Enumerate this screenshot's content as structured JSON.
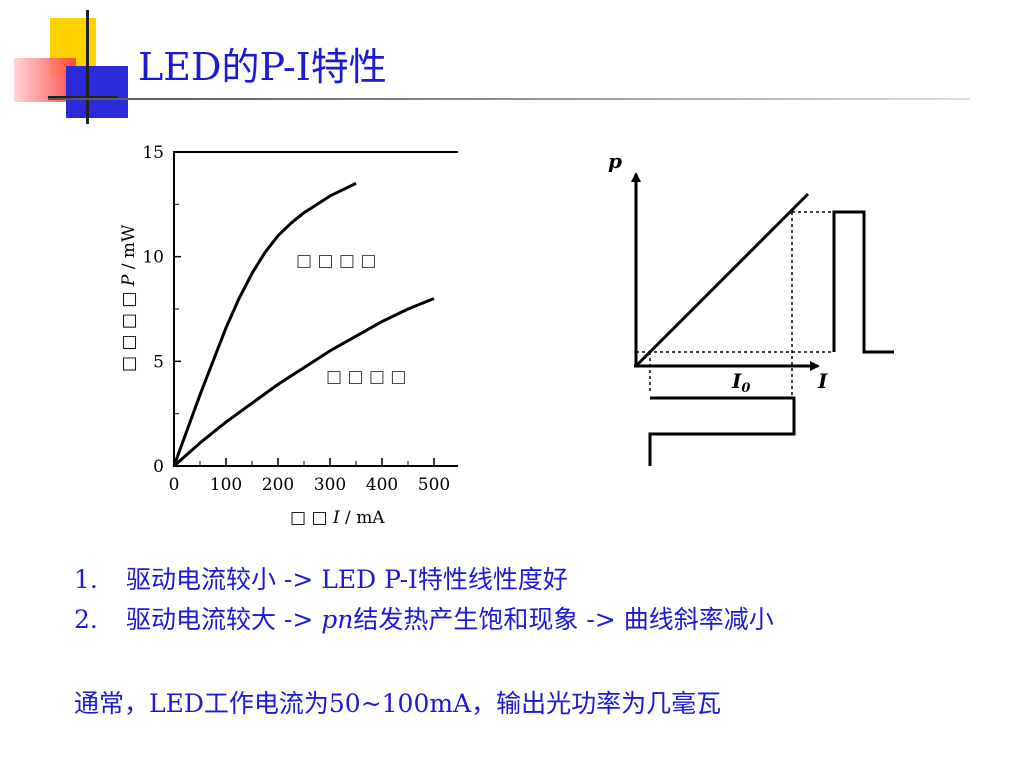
{
  "slide": {
    "title": "LED的P-I特性",
    "colors": {
      "title": "#1a1ad8",
      "accent_yellow": "#ffd200",
      "accent_red": "#ff3a3a",
      "accent_blue": "#2a2ad8"
    }
  },
  "chart_data": [
    {
      "type": "line",
      "xlim": [
        0,
        500
      ],
      "ylim": [
        0,
        15
      ],
      "x_ticks": [
        "0",
        "100",
        "200",
        "300",
        "400",
        "500"
      ],
      "y_ticks": [
        "0",
        "5",
        "10",
        "15"
      ],
      "xlabel_symbol": "I",
      "xlabel_unit": " / mA",
      "ylabel_symbol": "P",
      "ylabel_unit": " / mW",
      "xlabel_prefix": "□ □",
      "ylabel_prefix": "□ □ □ □",
      "grid": false,
      "series": [
        {
          "name": "□ □ □ □",
          "x": [
            0,
            25,
            50,
            75,
            100,
            125,
            150,
            175,
            200,
            225,
            250,
            275,
            300,
            325,
            350
          ],
          "y": [
            0,
            1.7,
            3.4,
            5.0,
            6.6,
            8.0,
            9.2,
            10.2,
            11.0,
            11.6,
            12.1,
            12.5,
            12.9,
            13.2,
            13.5
          ]
        },
        {
          "name": "□ □ □ □",
          "x": [
            0,
            50,
            100,
            150,
            200,
            250,
            300,
            350,
            400,
            450,
            500
          ],
          "y": [
            0,
            1.1,
            2.1,
            3.0,
            3.9,
            4.7,
            5.5,
            6.2,
            6.9,
            7.5,
            8.0
          ]
        }
      ]
    },
    {
      "type": "line",
      "xlabel": "I",
      "ylabel": "p",
      "threshold_label_main": "I",
      "threshold_label_sub": "0",
      "description_values": {
        "linear_curve": {
          "x": [
            0,
            1
          ],
          "y": [
            0,
            1
          ]
        },
        "input_pulse": "square",
        "output_pulse": "square"
      }
    }
  ],
  "bullets": [
    {
      "num": "1.",
      "text": "驱动电流较小 -> LED P-I特性线性度好"
    },
    {
      "num": "2.",
      "text_before": "驱动电流较大 -> ",
      "italic": "pn",
      "text_after": "结发热产生饱和现象 -> 曲线斜率减小"
    }
  ],
  "note": "通常，LED工作电流为50~100mA，输出光功率为几毫瓦"
}
